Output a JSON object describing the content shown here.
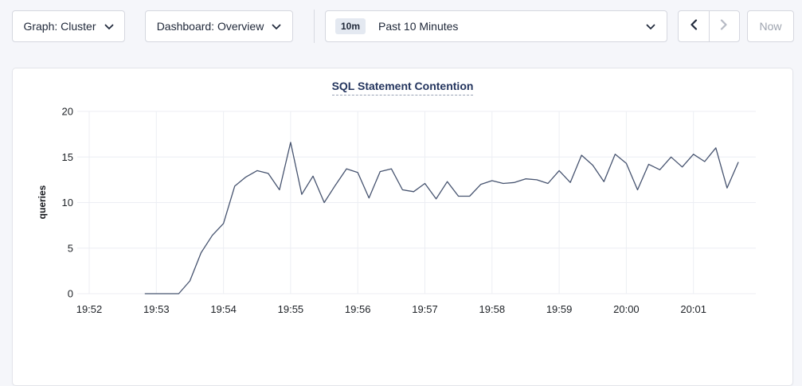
{
  "toolbar": {
    "graph_dropdown_label": "Graph: Cluster",
    "dashboard_dropdown_label": "Dashboard: Overview",
    "time_window_badge": "10m",
    "time_window_label": "Past 10 Minutes",
    "now_button_label": "Now"
  },
  "colors": {
    "line": "#46536f",
    "grid": "#eceef3",
    "title_accent": "#24355e",
    "disabled_icon": "#b6bac4",
    "enabled_icon": "#222b3d"
  },
  "chart_data": {
    "type": "line",
    "title": "SQL Statement Contention",
    "xlabel": "",
    "ylabel": "queries",
    "ylim": [
      0,
      20
    ],
    "yticks": [
      0,
      5,
      10,
      15,
      20
    ],
    "x_tick_labels": [
      "19:52",
      "19:53",
      "19:54",
      "19:55",
      "19:56",
      "19:57",
      "19:58",
      "19:59",
      "20:00",
      "20:01"
    ],
    "grid": true,
    "legend": "none",
    "line_color": "#46536f",
    "series": [
      {
        "name": "queries",
        "start_time": "19:52:50",
        "end_time": "20:01:40",
        "interval_sec": 10,
        "values": [
          0,
          0,
          0,
          0,
          1.4,
          4.5,
          6.4,
          7.7,
          11.8,
          12.8,
          13.5,
          13.2,
          11.4,
          16.6,
          10.9,
          12.9,
          10,
          11.9,
          13.7,
          13.3,
          10.5,
          13.4,
          13.7,
          11.4,
          11.2,
          12.1,
          10.4,
          12.3,
          10.7,
          10.7,
          12,
          12.4,
          12.1,
          12.2,
          12.6,
          12.5,
          12.1,
          13.5,
          12.2,
          15.2,
          14.1,
          12.3,
          15.3,
          14.3,
          11.4,
          14.2,
          13.6,
          15,
          13.9,
          15.3,
          14.5,
          16,
          11.6,
          14.4
        ]
      }
    ]
  }
}
